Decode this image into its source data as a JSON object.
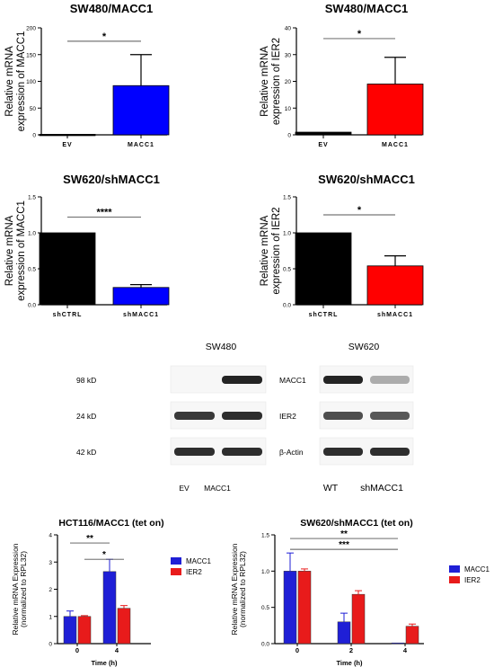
{
  "chart_data": [
    {
      "id": "a",
      "type": "bar",
      "title": "SW480/MACC1",
      "ylabel": [
        "Relative mRNA",
        "expression of MACC1"
      ],
      "categories": [
        "EV",
        "MACC1"
      ],
      "values": [
        1,
        92
      ],
      "errors": [
        0,
        58
      ],
      "colors": [
        "#000000",
        "#0000ff"
      ],
      "ylim": [
        0,
        200
      ],
      "yticks": [
        0,
        50,
        100,
        150,
        200
      ],
      "significance": [
        {
          "from": 0,
          "to": 1,
          "label": "*",
          "y": 175
        }
      ]
    },
    {
      "id": "b",
      "type": "bar",
      "title": "SW480/MACC1",
      "ylabel": [
        "Relative mRNA",
        "expression of IER2"
      ],
      "categories": [
        "EV",
        "MACC1"
      ],
      "values": [
        1,
        19
      ],
      "errors": [
        0,
        10
      ],
      "colors": [
        "#000000",
        "#ff0000"
      ],
      "ylim": [
        0,
        40
      ],
      "yticks": [
        0,
        10,
        20,
        30,
        40
      ],
      "significance": [
        {
          "from": 0,
          "to": 1,
          "label": "*",
          "y": 36
        }
      ]
    },
    {
      "id": "c",
      "type": "bar",
      "title": "SW620/shMACC1",
      "ylabel": [
        "Relative mRNA",
        "expression of MACC1"
      ],
      "categories": [
        "shCTRL",
        "shMACC1"
      ],
      "values": [
        1.0,
        0.24
      ],
      "errors": [
        0,
        0.04
      ],
      "colors": [
        "#000000",
        "#0000ff"
      ],
      "ylim": [
        0,
        1.5
      ],
      "yticks": [
        "0.0",
        "0.5",
        "1.0",
        "1.5"
      ],
      "significance": [
        {
          "from": 0,
          "to": 1,
          "label": "****",
          "y": 1.22
        }
      ]
    },
    {
      "id": "d",
      "type": "bar",
      "title": "SW620/shMACC1",
      "ylabel": [
        "Relative mRNA",
        "expression of IER2"
      ],
      "categories": [
        "shCTRL",
        "shMACC1"
      ],
      "values": [
        1.0,
        0.54
      ],
      "errors": [
        0,
        0.14
      ],
      "colors": [
        "#000000",
        "#ff0000"
      ],
      "ylim": [
        0,
        1.5
      ],
      "yticks": [
        "0.0",
        "0.5",
        "1.0",
        "1.5"
      ],
      "significance": [
        {
          "from": 0,
          "to": 1,
          "label": "*",
          "y": 1.25
        }
      ]
    },
    {
      "id": "e",
      "type": "bar",
      "title": "HCT116/MACC1 (tet on)",
      "ylabel": [
        "Relative mRNA Expression",
        "(normalized to RPL32)"
      ],
      "xlabel": "Time (h)",
      "categories": [
        "0",
        "4"
      ],
      "series": [
        {
          "name": "MACC1",
          "color": "#1f1fd6",
          "values": [
            1.0,
            2.65
          ],
          "errors": [
            0.2,
            0.45
          ]
        },
        {
          "name": "IER2",
          "color": "#e81b1b",
          "values": [
            1.0,
            1.3
          ],
          "errors": [
            0.03,
            0.1
          ]
        }
      ],
      "ylim": [
        0,
        4
      ],
      "yticks": [
        0,
        1,
        2,
        3,
        4
      ],
      "significance": [
        {
          "from": [
            0,
            0
          ],
          "to": [
            1,
            0
          ],
          "label": "**",
          "y": 3.7
        },
        {
          "from": [
            0,
            1
          ],
          "to": [
            1,
            1
          ],
          "label": "*",
          "y": 3.1
        }
      ]
    },
    {
      "id": "f",
      "type": "bar",
      "title": "SW620/shMACC1 (tet on)",
      "ylabel": [
        "Relative mRNA Expression",
        "(normalized to RPL32)"
      ],
      "xlabel": "Time (h)",
      "categories": [
        "0",
        "2",
        "4"
      ],
      "series": [
        {
          "name": "MACC1",
          "color": "#1f1fd6",
          "values": [
            1.0,
            0.3,
            0.01
          ],
          "errors": [
            0.25,
            0.12,
            0.0
          ]
        },
        {
          "name": "IER2",
          "color": "#e81b1b",
          "values": [
            1.0,
            0.68,
            0.24
          ],
          "errors": [
            0.03,
            0.05,
            0.03
          ]
        }
      ],
      "ylim": [
        0,
        1.5
      ],
      "yticks": [
        "0.0",
        "0.5",
        "1.0",
        "1.5"
      ],
      "significance": [
        {
          "from": [
            0,
            0
          ],
          "to": [
            2,
            0
          ],
          "label": "***",
          "y": 1.3
        },
        {
          "from": [
            0,
            0
          ],
          "to": [
            2,
            0
          ],
          "label": "**",
          "y": 1.45
        }
      ]
    }
  ],
  "western_blot": {
    "panels": [
      "SW480",
      "SW620"
    ],
    "rows": [
      {
        "size": "98 kD",
        "protein": "MACC1",
        "bands": [
          [
            0.0,
            0.95
          ],
          [
            0.95,
            0.3
          ]
        ]
      },
      {
        "size": "24 kD",
        "protein": "IER2",
        "bands": [
          [
            0.85,
            0.9
          ],
          [
            0.75,
            0.7
          ]
        ]
      },
      {
        "size": "42 kD",
        "protein": "β-Actin",
        "bands": [
          [
            0.9,
            0.9
          ],
          [
            0.9,
            0.9
          ]
        ]
      }
    ],
    "lanes": [
      [
        "EV",
        "MACC1"
      ],
      [
        "WT",
        "shMACC1"
      ]
    ]
  }
}
